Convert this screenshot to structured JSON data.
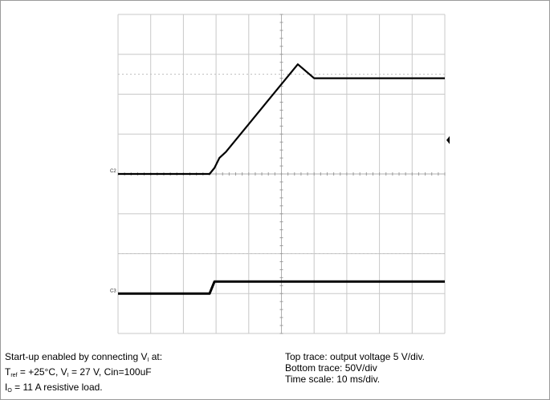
{
  "chart_data": {
    "type": "line",
    "title": "",
    "grid": true,
    "x_divisions": 10,
    "y_divisions": 8,
    "x_scale": "10 ms/div",
    "x": [
      0,
      2.8,
      2.95,
      3.1,
      3.3,
      3.6,
      4.0,
      4.5,
      5.0,
      5.5,
      6.0,
      10.0
    ],
    "series": [
      {
        "channel_label": "C2",
        "name": "",
        "scale": "5 V/div",
        "values": [
          0,
          0,
          0.15,
          0.4,
          0.55,
          0.85,
          1.25,
          1.75,
          2.25,
          2.75,
          2.4,
          2.4
        ]
      },
      {
        "channel_label": "C3",
        "name": "",
        "scale": "50V/div",
        "values": [
          0,
          0,
          0.3,
          0.3,
          0.3,
          0.3,
          0.3,
          0.3,
          0.3,
          0.3,
          0.3,
          0.3
        ]
      }
    ]
  },
  "caption": {
    "left": {
      "l1_pre": "Start-up enabled by connecting V",
      "l1_sub": "I",
      "l1_post": " at:",
      "l2_a": "T",
      "l2_sub1": "ref",
      "l2_b": " = +25°C, V",
      "l2_sub2": "I",
      "l2_c": " = 27 V, Cin=100uF",
      "l3_a": "I",
      "l3_sub": "O",
      "l3_b": " = 11 A resistive load."
    },
    "right": {
      "l1": "Top trace: output voltage 5 V/div.",
      "l2": "Bottom trace: 50V/div",
      "l3": "Time scale: 10 ms/div."
    }
  },
  "colors": {
    "trace": "#000000",
    "grid": "#c8c8c8"
  }
}
